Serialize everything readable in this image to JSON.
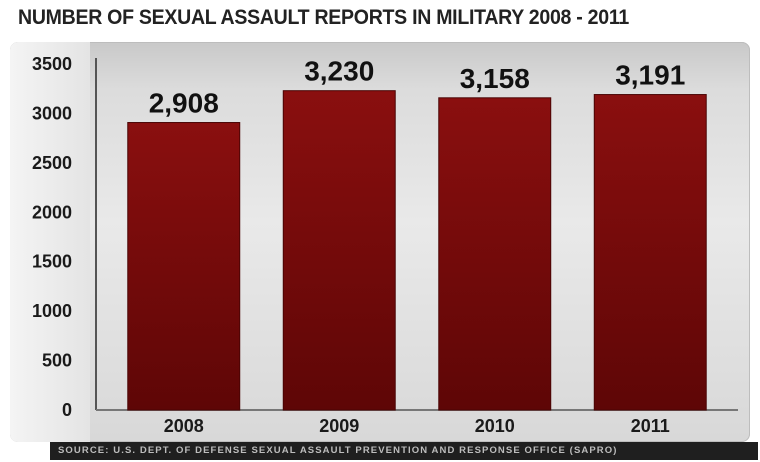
{
  "chart_data": {
    "type": "bar",
    "title": "NUMBER OF SEXUAL ASSAULT REPORTS IN MILITARY 2008 - 2011",
    "categories": [
      "2008",
      "2009",
      "2010",
      "2011"
    ],
    "values": [
      2908,
      3230,
      3158,
      3191
    ],
    "data_labels": [
      "2,908",
      "3,230",
      "3,158",
      "3,191"
    ],
    "xlabel": "",
    "ylabel": "",
    "ylim": [
      0,
      3500
    ],
    "yticks": [
      0,
      500,
      1000,
      1500,
      2000,
      2500,
      3000,
      3500
    ],
    "grid": false,
    "legend": "none",
    "bar_color": "#7a0b0b",
    "source": "SOURCE: U.S. DEPT. OF DEFENSE SEXUAL ASSAULT PREVENTION AND RESPONSE OFFICE (SAPRO)"
  }
}
